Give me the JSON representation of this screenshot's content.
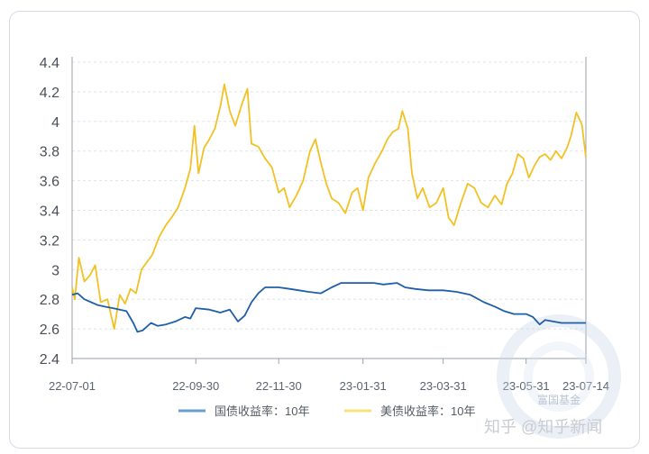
{
  "chart_data": {
    "type": "line",
    "x_ticks": [
      "22-07-01",
      "22-09-30",
      "22-11-30",
      "23-01-31",
      "23-03-31",
      "23-05-31",
      "23-07-14"
    ],
    "ylim": [
      2.4,
      4.4
    ],
    "y_ticks": [
      "2.4",
      "2.6",
      "2.8",
      "3",
      "3.2",
      "3.4",
      "3.6",
      "3.8",
      "4",
      "4.2",
      "4.4"
    ],
    "grid": "horizontal dashed",
    "legend_position": "bottom",
    "series": [
      {
        "name": "国债收益率：10年",
        "color": "#1f5fa8",
        "legend_color": "#6b9ed0",
        "points": [
          [
            "22-07-01",
            2.83
          ],
          [
            "22-07-05",
            2.84
          ],
          [
            "22-07-10",
            2.8
          ],
          [
            "22-07-15",
            2.78
          ],
          [
            "22-07-20",
            2.76
          ],
          [
            "22-07-25",
            2.75
          ],
          [
            "22-07-31",
            2.74
          ],
          [
            "22-08-05",
            2.73
          ],
          [
            "22-08-10",
            2.72
          ],
          [
            "22-08-15",
            2.64
          ],
          [
            "22-08-18",
            2.58
          ],
          [
            "22-08-22",
            2.59
          ],
          [
            "22-08-28",
            2.64
          ],
          [
            "22-09-02",
            2.62
          ],
          [
            "22-09-08",
            2.63
          ],
          [
            "22-09-15",
            2.65
          ],
          [
            "22-09-22",
            2.68
          ],
          [
            "22-09-26",
            2.67
          ],
          [
            "22-09-30",
            2.74
          ],
          [
            "22-10-10",
            2.73
          ],
          [
            "22-10-18",
            2.71
          ],
          [
            "22-10-25",
            2.73
          ],
          [
            "22-10-31",
            2.65
          ],
          [
            "22-11-05",
            2.69
          ],
          [
            "22-11-10",
            2.78
          ],
          [
            "22-11-15",
            2.84
          ],
          [
            "22-11-20",
            2.88
          ],
          [
            "22-11-30",
            2.88
          ],
          [
            "22-12-08",
            2.87
          ],
          [
            "22-12-15",
            2.86
          ],
          [
            "22-12-22",
            2.85
          ],
          [
            "22-12-31",
            2.84
          ],
          [
            "23-01-08",
            2.88
          ],
          [
            "23-01-15",
            2.91
          ],
          [
            "23-01-31",
            2.91
          ],
          [
            "23-02-08",
            2.91
          ],
          [
            "23-02-15",
            2.9
          ],
          [
            "23-02-25",
            2.91
          ],
          [
            "23-03-03",
            2.88
          ],
          [
            "23-03-10",
            2.87
          ],
          [
            "23-03-20",
            2.86
          ],
          [
            "23-03-31",
            2.86
          ],
          [
            "23-04-10",
            2.85
          ],
          [
            "23-04-20",
            2.83
          ],
          [
            "23-04-30",
            2.78
          ],
          [
            "23-05-08",
            2.75
          ],
          [
            "23-05-15",
            2.72
          ],
          [
            "23-05-22",
            2.7
          ],
          [
            "23-05-31",
            2.7
          ],
          [
            "23-06-05",
            2.68
          ],
          [
            "23-06-10",
            2.63
          ],
          [
            "23-06-14",
            2.66
          ],
          [
            "23-06-20",
            2.65
          ],
          [
            "23-06-26",
            2.64
          ],
          [
            "23-07-01",
            2.64
          ],
          [
            "23-07-07",
            2.64
          ],
          [
            "23-07-14",
            2.64
          ]
        ]
      },
      {
        "name": "美债收益率：10年",
        "color": "#f2c124",
        "legend_color": "#f6e27a",
        "points": [
          [
            "22-07-01",
            2.88
          ],
          [
            "22-07-03",
            2.8
          ],
          [
            "22-07-06",
            3.08
          ],
          [
            "22-07-10",
            2.92
          ],
          [
            "22-07-14",
            2.96
          ],
          [
            "22-07-18",
            3.03
          ],
          [
            "22-07-22",
            2.78
          ],
          [
            "22-07-27",
            2.8
          ],
          [
            "22-08-01",
            2.6
          ],
          [
            "22-08-05",
            2.83
          ],
          [
            "22-08-09",
            2.77
          ],
          [
            "22-08-13",
            2.87
          ],
          [
            "22-08-17",
            2.84
          ],
          [
            "22-08-21",
            3.0
          ],
          [
            "22-08-25",
            3.05
          ],
          [
            "22-08-29",
            3.1
          ],
          [
            "22-09-03",
            3.22
          ],
          [
            "22-09-08",
            3.3
          ],
          [
            "22-09-12",
            3.35
          ],
          [
            "22-09-17",
            3.42
          ],
          [
            "22-09-22",
            3.55
          ],
          [
            "22-09-26",
            3.68
          ],
          [
            "22-09-29",
            3.97
          ],
          [
            "22-10-02",
            3.65
          ],
          [
            "22-10-06",
            3.82
          ],
          [
            "22-10-10",
            3.88
          ],
          [
            "22-10-14",
            3.95
          ],
          [
            "22-10-18",
            4.1
          ],
          [
            "22-10-21",
            4.25
          ],
          [
            "22-10-25",
            4.07
          ],
          [
            "22-10-29",
            3.97
          ],
          [
            "22-11-03",
            4.12
          ],
          [
            "22-11-07",
            4.22
          ],
          [
            "22-11-10",
            3.85
          ],
          [
            "22-11-15",
            3.83
          ],
          [
            "22-11-20",
            3.75
          ],
          [
            "22-11-25",
            3.69
          ],
          [
            "22-11-30",
            3.52
          ],
          [
            "22-12-04",
            3.55
          ],
          [
            "22-12-08",
            3.42
          ],
          [
            "22-12-13",
            3.5
          ],
          [
            "22-12-18",
            3.6
          ],
          [
            "22-12-23",
            3.8
          ],
          [
            "22-12-27",
            3.88
          ],
          [
            "22-12-31",
            3.72
          ],
          [
            "23-01-04",
            3.58
          ],
          [
            "23-01-08",
            3.48
          ],
          [
            "23-01-13",
            3.45
          ],
          [
            "23-01-18",
            3.38
          ],
          [
            "23-01-23",
            3.52
          ],
          [
            "23-01-27",
            3.55
          ],
          [
            "23-01-31",
            3.4
          ],
          [
            "23-02-04",
            3.62
          ],
          [
            "23-02-09",
            3.72
          ],
          [
            "23-02-14",
            3.8
          ],
          [
            "23-02-18",
            3.88
          ],
          [
            "23-02-22",
            3.93
          ],
          [
            "23-02-26",
            3.95
          ],
          [
            "23-03-01",
            4.07
          ],
          [
            "23-03-05",
            3.95
          ],
          [
            "23-03-08",
            3.65
          ],
          [
            "23-03-12",
            3.48
          ],
          [
            "23-03-16",
            3.55
          ],
          [
            "23-03-21",
            3.42
          ],
          [
            "23-03-26",
            3.45
          ],
          [
            "23-03-31",
            3.55
          ],
          [
            "23-04-04",
            3.35
          ],
          [
            "23-04-08",
            3.3
          ],
          [
            "23-04-13",
            3.45
          ],
          [
            "23-04-18",
            3.58
          ],
          [
            "23-04-23",
            3.55
          ],
          [
            "23-04-28",
            3.45
          ],
          [
            "23-05-03",
            3.42
          ],
          [
            "23-05-08",
            3.5
          ],
          [
            "23-05-13",
            3.44
          ],
          [
            "23-05-17",
            3.58
          ],
          [
            "23-05-21",
            3.65
          ],
          [
            "23-05-25",
            3.78
          ],
          [
            "23-05-29",
            3.75
          ],
          [
            "23-06-02",
            3.62
          ],
          [
            "23-06-06",
            3.7
          ],
          [
            "23-06-10",
            3.76
          ],
          [
            "23-06-14",
            3.78
          ],
          [
            "23-06-18",
            3.74
          ],
          [
            "23-06-22",
            3.8
          ],
          [
            "23-06-26",
            3.75
          ],
          [
            "23-06-30",
            3.82
          ],
          [
            "23-07-03",
            3.9
          ],
          [
            "23-07-07",
            4.06
          ],
          [
            "23-07-11",
            3.98
          ],
          [
            "23-07-14",
            3.76
          ]
        ]
      }
    ]
  },
  "watermark": {
    "fund_text": "富国基金",
    "zhihu_text": "知乎 @知乎新闻"
  }
}
